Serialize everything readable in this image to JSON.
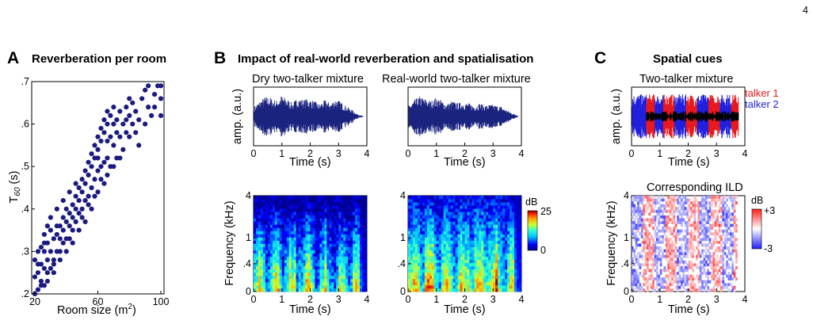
{
  "page_number": "4",
  "colors": {
    "dot": "#1a1a80",
    "wave_dark": "#1a237e",
    "talker1": "#e8191c",
    "talker2": "#1f1fdd"
  },
  "panels": {
    "A": {
      "letter": "A",
      "title": "Reverberation per room"
    },
    "B": {
      "letter": "B",
      "title": "Impact of real-world reverberation and spatialisation"
    },
    "C": {
      "letter": "C",
      "title": "Spatial cues"
    }
  },
  "chart_data": [
    {
      "type": "scatter",
      "title": "Reverberation per room",
      "xlabel": "Room size (m²)",
      "ylabel": "T60 (s)",
      "xlim": [
        18,
        102
      ],
      "ylim": [
        0.2,
        0.7
      ],
      "xticks": [
        "20",
        "60",
        "100"
      ],
      "yticks": [
        ".2",
        ".3",
        ".4",
        ".5",
        ".6",
        ".7"
      ],
      "points": [
        [
          20,
          0.2
        ],
        [
          22,
          0.21
        ],
        [
          24,
          0.22
        ],
        [
          20,
          0.24
        ],
        [
          22,
          0.25
        ],
        [
          24,
          0.27
        ],
        [
          26,
          0.26
        ],
        [
          28,
          0.28
        ],
        [
          20,
          0.28
        ],
        [
          22,
          0.3
        ],
        [
          24,
          0.31
        ],
        [
          26,
          0.3
        ],
        [
          28,
          0.32
        ],
        [
          30,
          0.3
        ],
        [
          32,
          0.33
        ],
        [
          30,
          0.35
        ],
        [
          28,
          0.36
        ],
        [
          26,
          0.34
        ],
        [
          32,
          0.28
        ],
        [
          34,
          0.3
        ],
        [
          34,
          0.34
        ],
        [
          36,
          0.33
        ],
        [
          36,
          0.36
        ],
        [
          38,
          0.35
        ],
        [
          38,
          0.38
        ],
        [
          40,
          0.37
        ],
        [
          40,
          0.4
        ],
        [
          42,
          0.39
        ],
        [
          42,
          0.36
        ],
        [
          44,
          0.38
        ],
        [
          44,
          0.41
        ],
        [
          46,
          0.4
        ],
        [
          46,
          0.43
        ],
        [
          48,
          0.42
        ],
        [
          48,
          0.45
        ],
        [
          50,
          0.44
        ],
        [
          50,
          0.47
        ],
        [
          52,
          0.46
        ],
        [
          52,
          0.49
        ],
        [
          54,
          0.48
        ],
        [
          54,
          0.51
        ],
        [
          56,
          0.5
        ],
        [
          56,
          0.53
        ],
        [
          58,
          0.52
        ],
        [
          58,
          0.55
        ],
        [
          60,
          0.54
        ],
        [
          60,
          0.57
        ],
        [
          62,
          0.56
        ],
        [
          62,
          0.59
        ],
        [
          64,
          0.58
        ],
        [
          64,
          0.61
        ],
        [
          66,
          0.6
        ],
        [
          66,
          0.63
        ],
        [
          68,
          0.62
        ],
        [
          68,
          0.57
        ],
        [
          70,
          0.6
        ],
        [
          70,
          0.64
        ],
        [
          72,
          0.61
        ],
        [
          74,
          0.63
        ],
        [
          76,
          0.6
        ],
        [
          78,
          0.64
        ],
        [
          80,
          0.66
        ],
        [
          80,
          0.62
        ],
        [
          82,
          0.65
        ],
        [
          84,
          0.63
        ],
        [
          88,
          0.66
        ],
        [
          90,
          0.68
        ],
        [
          92,
          0.64
        ],
        [
          94,
          0.62
        ],
        [
          96,
          0.67
        ],
        [
          98,
          0.69
        ],
        [
          100,
          0.66
        ],
        [
          100,
          0.62
        ],
        [
          60,
          0.49
        ],
        [
          64,
          0.51
        ],
        [
          56,
          0.45
        ],
        [
          52,
          0.42
        ],
        [
          48,
          0.39
        ],
        [
          44,
          0.35
        ],
        [
          40,
          0.33
        ],
        [
          36,
          0.3
        ],
        [
          32,
          0.27
        ],
        [
          28,
          0.25
        ],
        [
          24,
          0.23
        ],
        [
          30,
          0.38
        ],
        [
          34,
          0.4
        ],
        [
          38,
          0.42
        ],
        [
          42,
          0.44
        ],
        [
          46,
          0.46
        ],
        [
          50,
          0.4
        ],
        [
          54,
          0.43
        ],
        [
          58,
          0.47
        ],
        [
          62,
          0.5
        ],
        [
          66,
          0.52
        ],
        [
          70,
          0.55
        ],
        [
          74,
          0.57
        ],
        [
          78,
          0.58
        ],
        [
          82,
          0.6
        ],
        [
          86,
          0.55
        ],
        [
          72,
          0.52
        ],
        [
          76,
          0.54
        ],
        [
          68,
          0.5
        ],
        [
          64,
          0.46
        ],
        [
          60,
          0.44
        ],
        [
          56,
          0.4
        ],
        [
          52,
          0.37
        ],
        [
          48,
          0.35
        ],
        [
          44,
          0.32
        ],
        [
          40,
          0.3
        ],
        [
          36,
          0.28
        ],
        [
          32,
          0.25
        ],
        [
          28,
          0.23
        ],
        [
          26,
          0.22
        ],
        [
          22,
          0.27
        ],
        [
          26,
          0.32
        ],
        [
          30,
          0.26
        ],
        [
          34,
          0.36
        ],
        [
          38,
          0.32
        ],
        [
          42,
          0.33
        ],
        [
          46,
          0.37
        ],
        [
          50,
          0.38
        ],
        [
          54,
          0.41
        ],
        [
          58,
          0.43
        ],
        [
          62,
          0.47
        ],
        [
          66,
          0.48
        ],
        [
          70,
          0.5
        ],
        [
          74,
          0.52
        ],
        [
          80,
          0.57
        ],
        [
          84,
          0.58
        ],
        [
          90,
          0.6
        ],
        [
          96,
          0.64
        ],
        [
          100,
          0.69
        ],
        [
          92,
          0.69
        ],
        [
          86,
          0.61
        ],
        [
          78,
          0.61
        ],
        [
          72,
          0.58
        ],
        [
          66,
          0.56
        ],
        [
          60,
          0.52
        ]
      ]
    },
    {
      "type": "line",
      "title": "Dry two-talker mixture",
      "xlabel": "Time (s)",
      "ylabel": "amp. (a.u.)",
      "xlim": [
        0,
        4
      ],
      "xticks": [
        "0",
        "1",
        "2",
        "3",
        "4"
      ],
      "envelope": {
        "t": [
          0.0,
          0.2,
          0.4,
          0.6,
          0.8,
          1.0,
          1.2,
          1.4,
          1.6,
          1.8,
          2.0,
          2.2,
          2.4,
          2.6,
          2.8,
          3.0,
          3.2,
          3.4,
          3.6,
          3.8,
          4.0
        ],
        "amp": [
          0.45,
          0.7,
          0.9,
          0.85,
          0.7,
          0.95,
          0.8,
          0.6,
          0.85,
          0.75,
          0.8,
          0.7,
          0.55,
          0.75,
          0.6,
          0.8,
          0.65,
          0.45,
          0.3,
          0.1,
          0.02
        ]
      }
    },
    {
      "type": "line",
      "title": "Real-world two-talker mixture",
      "xlabel": "Time (s)",
      "ylabel": "",
      "xlim": [
        0,
        4
      ],
      "xticks": [
        "0",
        "1",
        "2",
        "3",
        "4"
      ],
      "envelope": {
        "t": [
          0.0,
          0.2,
          0.4,
          0.6,
          0.8,
          1.0,
          1.2,
          1.4,
          1.6,
          1.8,
          2.0,
          2.2,
          2.4,
          2.6,
          2.8,
          3.0,
          3.2,
          3.4,
          3.6,
          3.8,
          4.0
        ],
        "amp": [
          0.5,
          0.75,
          0.9,
          0.8,
          0.7,
          0.85,
          0.75,
          0.55,
          0.7,
          0.6,
          0.65,
          0.6,
          0.5,
          0.6,
          0.5,
          0.55,
          0.5,
          0.45,
          0.3,
          0.15,
          0.05
        ]
      }
    },
    {
      "type": "heatmap",
      "title": "",
      "xlabel": "Time (s)",
      "ylabel": "Frequency (kHz)",
      "xticks": [
        "0",
        "1",
        "2",
        "3",
        "4"
      ],
      "yticks": [
        "0",
        ".4",
        "1",
        "4"
      ],
      "colorbar": {
        "label": "dB",
        "min": "0",
        "max": "25"
      }
    },
    {
      "type": "heatmap",
      "title": "",
      "xlabel": "Time (s)",
      "ylabel": "",
      "xticks": [
        "0",
        "1",
        "2",
        "3",
        "4"
      ],
      "yticks": [
        "0",
        ".4",
        "1",
        "4"
      ]
    },
    {
      "type": "line",
      "title": "Two-talker mixture",
      "xlabel": "Time (s)",
      "ylabel": "amp. (a.u.)",
      "xlim": [
        0,
        4
      ],
      "xticks": [
        "0",
        "1",
        "2",
        "3",
        "4"
      ],
      "legend": [
        "talker 1",
        "talker 2"
      ]
    },
    {
      "type": "heatmap",
      "title": "Corresponding ILD",
      "xlabel": "Time (s)",
      "ylabel": "Frequency (kHz)",
      "xticks": [
        "0",
        "1",
        "2",
        "3",
        "4"
      ],
      "yticks": [
        "0",
        ".4",
        "1",
        "4"
      ],
      "colorbar": {
        "label": "dB",
        "min": "-3",
        "max": "+3"
      }
    }
  ]
}
